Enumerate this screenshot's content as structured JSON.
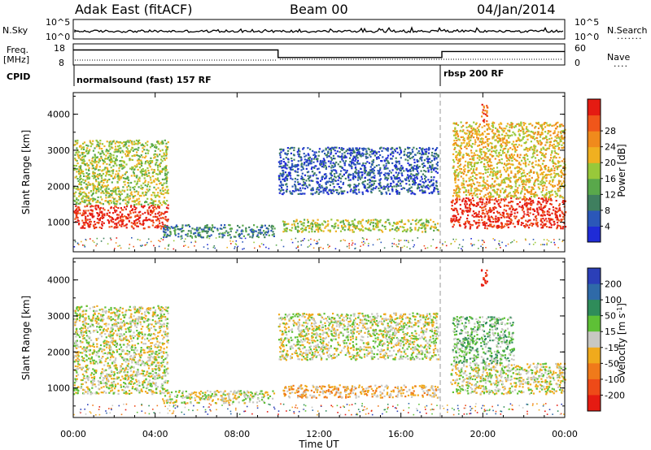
{
  "header": {
    "station": "Adak East (fitACF)",
    "beam": "Beam 00",
    "date": "04/Jan/2014"
  },
  "nsky_panel": {
    "left_label": "N.Sky",
    "left_ticks": [
      "10^5",
      "10^0"
    ],
    "right_ticks": [
      "10^5",
      "10^0"
    ],
    "right_label": "N.Search",
    "right_legend_glyph": "......."
  },
  "freq_panel": {
    "left_label_top": "Freq.",
    "left_label_unit": "[MHz]",
    "left_ticks": [
      "18",
      "8"
    ],
    "right_ticks": [
      "60",
      "0"
    ],
    "right_label": "Nave",
    "right_legend_glyph": "....",
    "freq_range": [
      8,
      18
    ],
    "freq_steps": [
      {
        "from_hour": 0.0,
        "to_hour": 10.0,
        "mhz": 15.3
      },
      {
        "from_hour": 10.0,
        "to_hour": 18.0,
        "mhz": 11.4
      },
      {
        "from_hour": 18.0,
        "to_hour": 24.0,
        "mhz": 14.5
      }
    ]
  },
  "cpid": {
    "label": "CPID",
    "modes": [
      {
        "text": "normalsound (fast) 157 RF",
        "start_hour": 0.0
      },
      {
        "text": "rbsp 200 RF",
        "start_hour": 18.0
      }
    ]
  },
  "chart_data": [
    {
      "type": "heatmap",
      "name": "Power",
      "ylabel": "Slant Range [km]",
      "yticks": [
        "1000",
        "2000",
        "3000",
        "4000"
      ],
      "ylim": [
        180,
        4600
      ],
      "xlim": [
        0,
        24
      ],
      "colorbar": {
        "label": "Power [dB]",
        "ticks": [
          "4",
          "8",
          "12",
          "16",
          "20",
          "24",
          "28"
        ],
        "colors": [
          "#1f2bd6",
          "#2b57b8",
          "#3f7f5f",
          "#59a84b",
          "#98c83a",
          "#f0b020",
          "#f08a1c",
          "#f0561a",
          "#e51b12"
        ]
      },
      "regions": [
        {
          "t": [
            0.0,
            4.6
          ],
          "r": [
            850,
            1500
          ],
          "level": 8
        },
        {
          "t": [
            0.0,
            4.6
          ],
          "r": [
            1500,
            3300
          ],
          "level": 4
        },
        {
          "t": [
            4.3,
            9.8
          ],
          "r": [
            600,
            950
          ],
          "level": 2
        },
        {
          "t": [
            10.2,
            17.8
          ],
          "r": [
            750,
            1100
          ],
          "level": 4
        },
        {
          "t": [
            10.0,
            17.8
          ],
          "r": [
            1800,
            3100
          ],
          "level": 1
        },
        {
          "t": [
            18.4,
            24.0
          ],
          "r": [
            850,
            1700
          ],
          "level": 8
        },
        {
          "t": [
            18.5,
            24.0
          ],
          "r": [
            1700,
            3800
          ],
          "level": 5
        },
        {
          "t": [
            19.9,
            20.2
          ],
          "r": [
            3800,
            4300
          ],
          "level": 7
        }
      ]
    },
    {
      "type": "heatmap",
      "name": "Velocity",
      "ylabel": "Slant Range [km]",
      "yticks": [
        "1000",
        "2000",
        "3000",
        "4000"
      ],
      "ylim": [
        180,
        4600
      ],
      "xlim": [
        0,
        24
      ],
      "colorbar": {
        "label": "Velocity [m s^-1]",
        "ticks": [
          "200",
          "100",
          "50",
          "15",
          "-15",
          "-50",
          "-100",
          "-200"
        ],
        "colors": [
          "#2b3fb8",
          "#2f6aa8",
          "#2f8c5a",
          "#5ec036",
          "#c8c8c2",
          "#f0aa1c",
          "#f07a1a",
          "#ee4a18",
          "#e51b12"
        ]
      },
      "regions": [
        {
          "t": [
            0.0,
            4.6
          ],
          "r": [
            850,
            1500
          ],
          "level": 4
        },
        {
          "t": [
            0.0,
            4.6
          ],
          "r": [
            1500,
            3300
          ],
          "level": 4
        },
        {
          "t": [
            4.3,
            9.8
          ],
          "r": [
            600,
            950
          ],
          "level": 4
        },
        {
          "t": [
            10.2,
            17.8
          ],
          "r": [
            750,
            1100
          ],
          "level": 5
        },
        {
          "t": [
            10.0,
            17.8
          ],
          "r": [
            1800,
            3100
          ],
          "level": 4
        },
        {
          "t": [
            18.4,
            24.0
          ],
          "r": [
            850,
            1700
          ],
          "level": 4
        },
        {
          "t": [
            18.5,
            21.5
          ],
          "r": [
            1700,
            3000
          ],
          "level": 3
        },
        {
          "t": [
            19.9,
            20.2
          ],
          "r": [
            3800,
            4300
          ],
          "level": 8
        }
      ]
    }
  ],
  "time_axis": {
    "ticks": [
      "00:00",
      "04:00",
      "08:00",
      "12:00",
      "16:00",
      "20:00",
      "00:00"
    ],
    "label": "Time UT"
  }
}
